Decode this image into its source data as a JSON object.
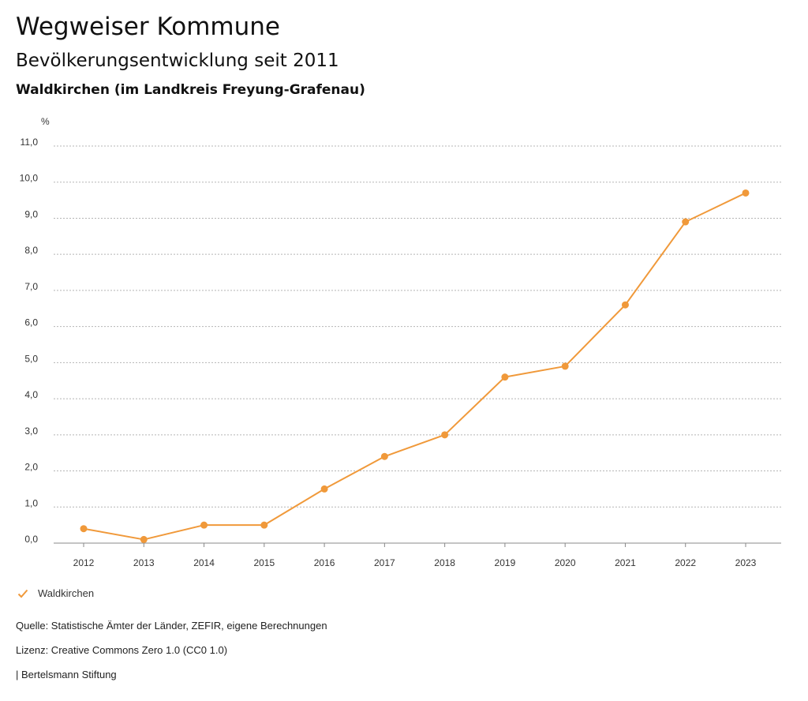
{
  "header": {
    "title": "Wegweiser Kommune",
    "subtitle": "Bevölkerungsentwicklung seit 2011",
    "region": "Waldkirchen (im Landkreis Freyung-Grafenau)"
  },
  "chart_data": {
    "type": "line",
    "title": "Bevölkerungsentwicklung seit 2011",
    "ylabel": "%",
    "xlabel": "",
    "categories": [
      "2012",
      "2013",
      "2014",
      "2015",
      "2016",
      "2017",
      "2018",
      "2019",
      "2020",
      "2021",
      "2022",
      "2023"
    ],
    "series": [
      {
        "name": "Waldkirchen",
        "color": "#f0993a",
        "values": [
          0.4,
          0.1,
          0.5,
          0.5,
          1.5,
          2.4,
          3.0,
          4.6,
          4.9,
          6.6,
          8.9,
          9.7
        ]
      }
    ],
    "ylim": [
      0,
      11
    ],
    "yticks": [
      0,
      1,
      2,
      3,
      4,
      5,
      6,
      7,
      8,
      9,
      10,
      11
    ],
    "ytick_labels": [
      "0,0",
      "1,0",
      "2,0",
      "3,0",
      "4,0",
      "5,0",
      "6,0",
      "7,0",
      "8,0",
      "9,0",
      "10,0",
      "11,0"
    ],
    "grid": true,
    "legend": "bottom-left"
  },
  "legend": {
    "label": "Waldkirchen"
  },
  "footer": {
    "source": "Quelle: Statistische Ämter der Länder, ZEFIR, eigene Berechnungen",
    "license": "Lizenz: Creative Commons Zero 1.0 (CC0 1.0)",
    "publisher": "| Bertelsmann Stiftung"
  }
}
